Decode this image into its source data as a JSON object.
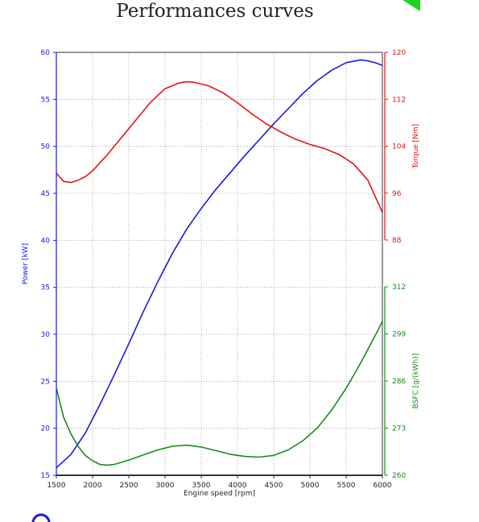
{
  "page": {
    "title": "Performances curves"
  },
  "colors": {
    "power": "#1a1adc",
    "torque": "#e01616",
    "bsfc": "#1a8a1a",
    "grid": "#9a9a9a",
    "corner_mark": "#1ed61e",
    "bottom_mark": "#1a1adc"
  },
  "chart_data": {
    "type": "line",
    "title": "",
    "xlabel": "Engine speed [rpm]",
    "xlim": [
      1500,
      6000
    ],
    "x_ticks": [
      "1500",
      "2000",
      "2500",
      "3000",
      "3500",
      "4000",
      "4500",
      "5000",
      "5500",
      "6000"
    ],
    "grid": true,
    "axes": {
      "power": {
        "label": "Power [kW]",
        "lim": [
          15,
          60
        ],
        "ticks": [
          "15",
          "20",
          "25",
          "30",
          "35",
          "40",
          "45",
          "50",
          "55",
          "60"
        ]
      },
      "torque": {
        "label": "Torque [Nm]",
        "lim": [
          88,
          120
        ],
        "ticks": [
          "88",
          "96",
          "104",
          "112",
          "120"
        ]
      },
      "bsfc": {
        "label": "BSFC [g/(kWh)]",
        "lim": [
          260,
          312
        ],
        "ticks": [
          "260",
          "273",
          "286",
          "299",
          "312"
        ]
      }
    },
    "series": [
      {
        "name": "Power [kW]",
        "axis": "power",
        "color": "#1a1adc",
        "x": [
          1500,
          1700,
          1900,
          2100,
          2300,
          2500,
          2700,
          2900,
          3100,
          3300,
          3500,
          3700,
          3900,
          4100,
          4300,
          4500,
          4700,
          4900,
          5100,
          5300,
          5500,
          5700,
          5800,
          5900,
          6000
        ],
        "y": [
          15.8,
          17.2,
          19.5,
          22.5,
          25.7,
          29.0,
          32.4,
          35.6,
          38.6,
          41.2,
          43.4,
          45.4,
          47.2,
          49.0,
          50.7,
          52.4,
          54.0,
          55.6,
          57.0,
          58.1,
          58.9,
          59.2,
          59.1,
          58.9,
          58.6
        ]
      },
      {
        "name": "Torque [Nm]",
        "axis": "torque",
        "color": "#e01616",
        "x": [
          1500,
          1600,
          1700,
          1800,
          1900,
          2000,
          2200,
          2400,
          2600,
          2800,
          3000,
          3200,
          3300,
          3400,
          3600,
          3800,
          4000,
          4200,
          4400,
          4600,
          4800,
          5000,
          5200,
          5400,
          5600,
          5800,
          6000
        ],
        "y": [
          99.4,
          98.0,
          97.8,
          98.2,
          98.8,
          99.8,
          102.5,
          105.5,
          108.5,
          111.5,
          113.8,
          114.8,
          115.0,
          114.9,
          114.3,
          113.1,
          111.4,
          109.5,
          107.8,
          106.4,
          105.2,
          104.3,
          103.6,
          102.6,
          101.0,
          98.2,
          92.7
        ]
      },
      {
        "name": "BSFC [g/(kWh)]",
        "axis": "bsfc",
        "color": "#1a8a1a",
        "x": [
          1500,
          1600,
          1700,
          1800,
          1900,
          2000,
          2100,
          2200,
          2300,
          2500,
          2700,
          2900,
          3100,
          3300,
          3500,
          3700,
          3900,
          4100,
          4300,
          4500,
          4700,
          4900,
          5100,
          5300,
          5500,
          5700,
          5900,
          6000
        ],
        "y": [
          284.0,
          276.0,
          271.5,
          268.0,
          265.5,
          264.0,
          263.0,
          262.8,
          263.0,
          264.2,
          265.6,
          267.0,
          268.0,
          268.3,
          267.8,
          266.8,
          265.8,
          265.2,
          265.0,
          265.5,
          267.0,
          269.5,
          273.0,
          278.0,
          284.0,
          291.0,
          298.5,
          302.5
        ]
      }
    ]
  }
}
